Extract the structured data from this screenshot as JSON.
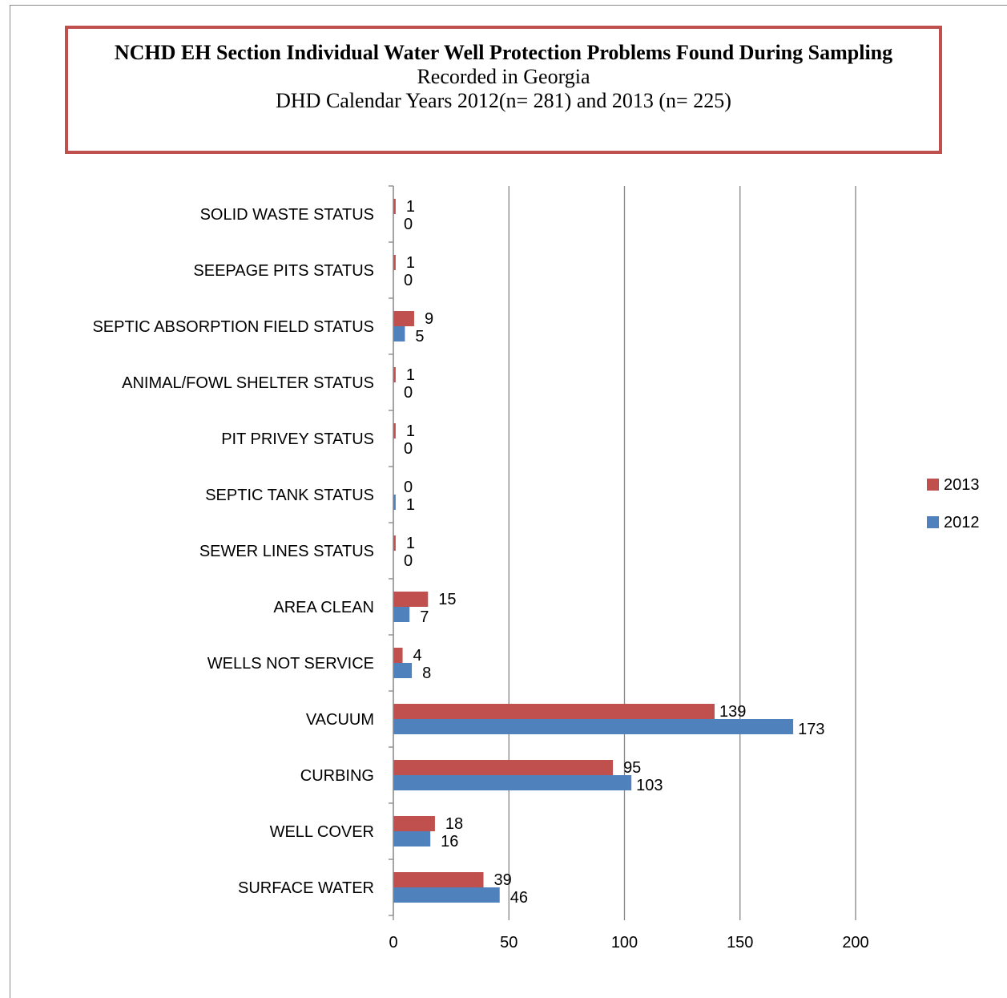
{
  "chart_data": {
    "type": "bar",
    "orientation": "horizontal",
    "title": "NCHD EH Section Individual Water Well Protection Problems Found During Sampling",
    "subtitle_lines": [
      "Recorded in Georgia",
      "DHD Calendar Years 2012(n= 281) and 2013 (n= 225)"
    ],
    "categories": [
      "SOLID WASTE STATUS",
      "SEEPAGE PITS STATUS",
      "SEPTIC ABSORPTION FIELD STATUS",
      "ANIMAL/FOWL SHELTER STATUS",
      "PIT PRIVEY STATUS",
      "SEPTIC TANK STATUS",
      "SEWER LINES STATUS",
      "AREA CLEAN",
      "WELLS NOT SERVICE",
      "VACUUM",
      "CURBING",
      "WELL COVER",
      "SURFACE WATER"
    ],
    "series": [
      {
        "name": "2013",
        "color": "#c0504d",
        "values": [
          1,
          1,
          9,
          1,
          1,
          0,
          1,
          15,
          4,
          139,
          95,
          18,
          39
        ]
      },
      {
        "name": "2012",
        "color": "#4f81bd",
        "values": [
          0,
          0,
          5,
          0,
          0,
          1,
          0,
          7,
          8,
          173,
          103,
          16,
          46
        ]
      }
    ],
    "xlim": [
      0,
      200
    ],
    "xticks": [
      0,
      50,
      100,
      150,
      200
    ],
    "grid": true,
    "legend": "right"
  }
}
